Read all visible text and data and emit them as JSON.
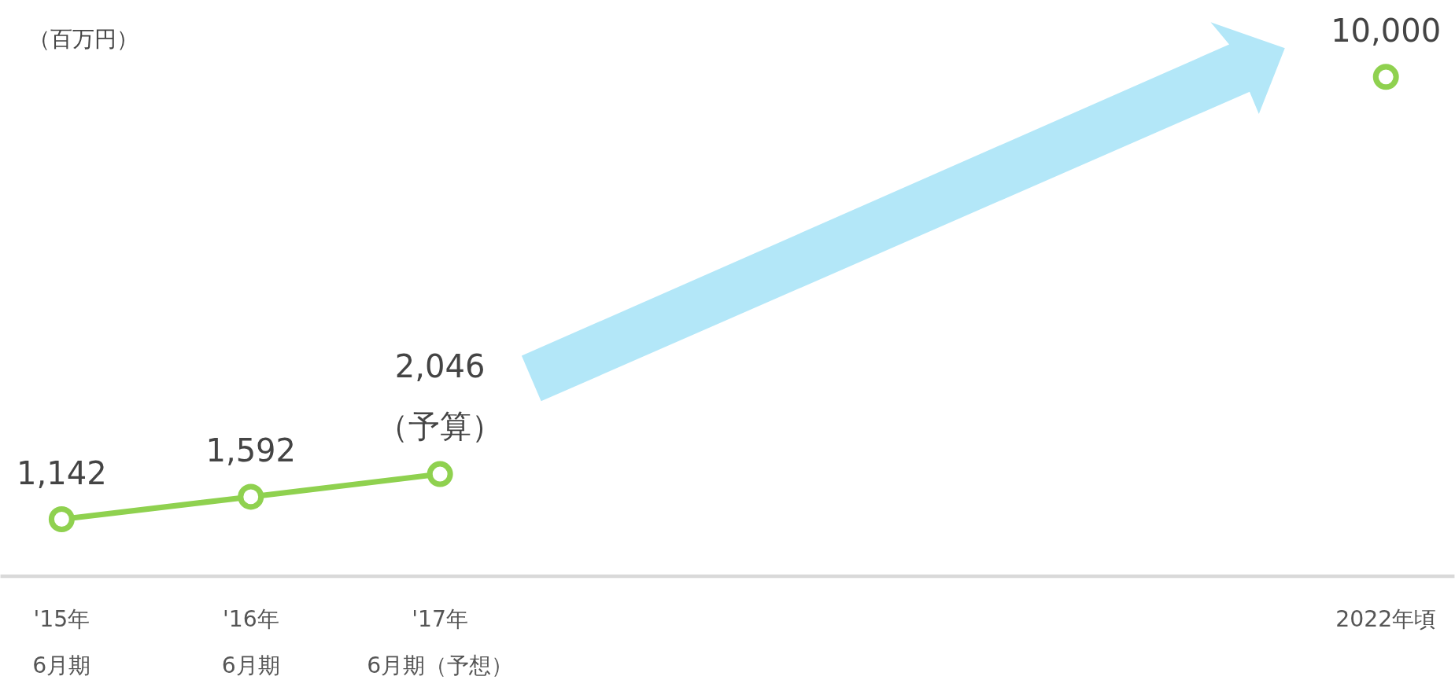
{
  "chart_data": {
    "type": "line",
    "ylabel": "（百万円）",
    "categories": [
      "'15年\n6月期",
      "'16年\n6月期",
      "'17年\n6月期（予想）",
      null,
      null,
      null,
      null,
      "2022年頃"
    ],
    "series": [
      {
        "color": "#8fd14f",
        "values": [
          1142,
          1592,
          2046,
          null,
          null,
          null,
          null,
          null
        ],
        "value_labels": [
          "1,142",
          "1,592",
          "2,046",
          null,
          null,
          null,
          null,
          null
        ]
      },
      {
        "type": "scatter",
        "color": "#8fd14f",
        "values": [
          null,
          null,
          null,
          null,
          null,
          null,
          null,
          10000
        ],
        "value_labels": [
          null,
          null,
          null,
          null,
          null,
          null,
          null,
          "10,000"
        ]
      }
    ],
    "marker": "circle",
    "annotations": [
      {
        "text": "（予算）",
        "x": "'17年\n6月期（予想）",
        "y": 2046
      }
    ]
  }
}
